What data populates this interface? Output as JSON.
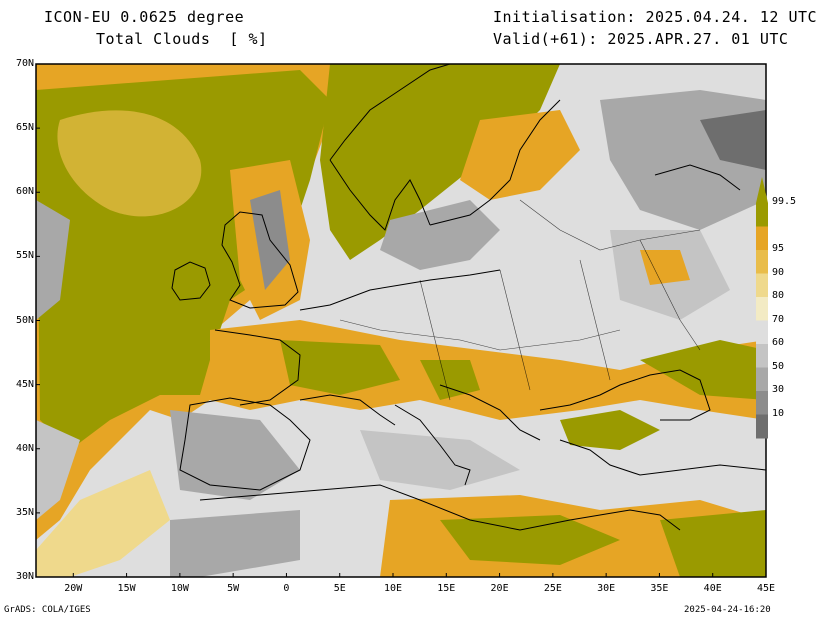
{
  "header": {
    "model": "ICON-EU 0.0625 degree",
    "variable": "Total Clouds  [ %]",
    "init": "Initialisation: 2025.04.24. 12 UTC",
    "valid": "Valid(+61): 2025.APR.27. 01 UTC"
  },
  "lat_labels": [
    "70N",
    "65N",
    "60N",
    "55N",
    "50N",
    "45N",
    "40N",
    "35N",
    "30N"
  ],
  "lon_labels": [
    "20W",
    "15W",
    "10W",
    "5W",
    "0",
    "5E",
    "10E",
    "15E",
    "20E",
    "25E",
    "30E",
    "35E",
    "40E",
    "45E"
  ],
  "colorbar": {
    "labels": [
      "99.5",
      "95",
      "90",
      "80",
      "70",
      "60",
      "50",
      "30",
      "10"
    ],
    "colors": [
      "#9a9a00",
      "#e6a525",
      "#e9bd4a",
      "#efd98c",
      "#f3ebc4",
      "#dedede",
      "#c4c4c4",
      "#a8a8a8",
      "#8c8c8c",
      "#6e6e6e"
    ]
  },
  "footer": {
    "left": "GrADS: COLA/IGES",
    "right": "2025-04-24-16:20"
  }
}
